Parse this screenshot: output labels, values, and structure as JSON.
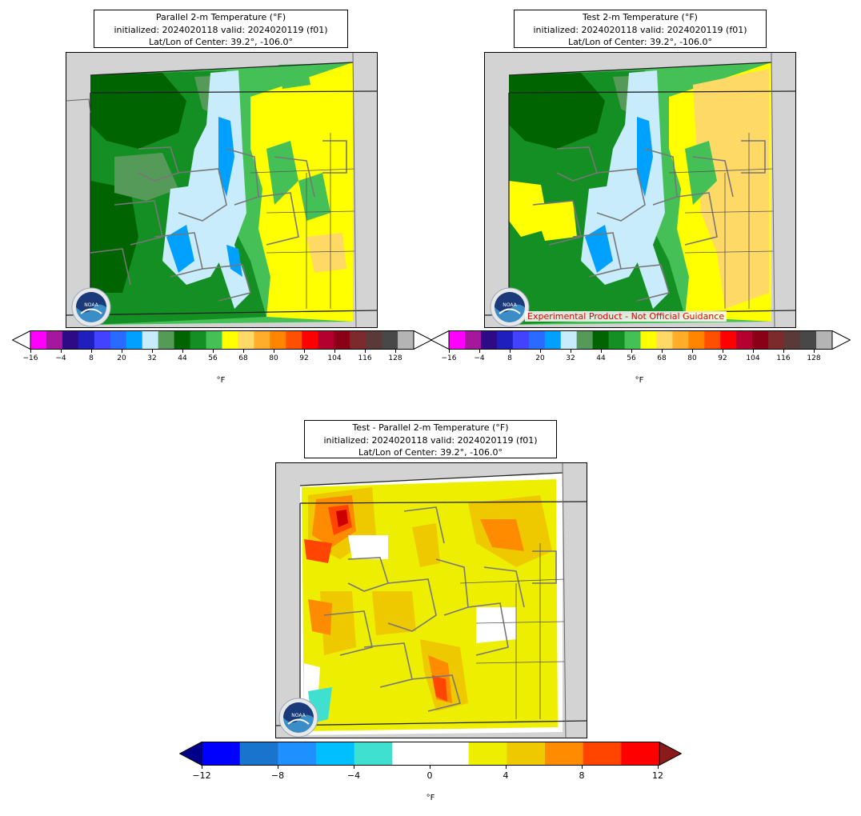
{
  "panels": {
    "parallel": {
      "title": "Parallel 2-m Temperature (°F)",
      "line2": "initialized: 2024020118 valid: 2024020119 (f01)",
      "line3": "Lat/Lon of Center: 39.2°, -106.0°"
    },
    "test": {
      "title": "Test 2-m Temperature (°F)",
      "line2": "initialized: 2024020118 valid: 2024020119 (f01)",
      "line3": "Lat/Lon of Center: 39.2°, -106.0°",
      "disclaimer": "Experimental Product - Not Official Guidance"
    },
    "diff": {
      "title": "Test - Parallel 2-m Temperature (°F)",
      "line2": "initialized: 2024020118 valid: 2024020119 (f01)",
      "line3": "Lat/Lon of Center: 39.2°, -106.0°"
    }
  },
  "logo_text": "NOAA",
  "temp_colorbar": {
    "unit": "°F",
    "ticks": [
      "−16",
      "−4",
      "8",
      "20",
      "32",
      "44",
      "56",
      "68",
      "80",
      "92",
      "104",
      "116",
      "128"
    ],
    "colors": [
      "#ff00ff",
      "#a5189e",
      "#2e0a87",
      "#1f1fbe",
      "#4242ff",
      "#2a6bff",
      "#00a0ff",
      "#c8ecfb",
      "#569a5a",
      "#006400",
      "#138f23",
      "#44c057",
      "#ffff00",
      "#ffd966",
      "#ffad2b",
      "#ff8400",
      "#ff4f00",
      "#ff0000",
      "#b3002e",
      "#8a0016",
      "#7b2b2b",
      "#5a3939",
      "#484848",
      "#b4b4b4"
    ],
    "under_color": "#ffffff",
    "over_color": "#ffffff"
  },
  "diff_colorbar": {
    "unit": "°F",
    "ticks": [
      "−12",
      "−8",
      "−4",
      "0",
      "4",
      "8",
      "12"
    ],
    "colors": [
      "#0000ff",
      "#1874cd",
      "#1e90ff",
      "#00bfff",
      "#40e0d0",
      "#ffffff",
      "#ffffff",
      "#eeee00",
      "#eec900",
      "#ff8c00",
      "#ff4500",
      "#ff0000"
    ],
    "under_color": "#00008b",
    "over_color": "#8b1a1a"
  }
}
